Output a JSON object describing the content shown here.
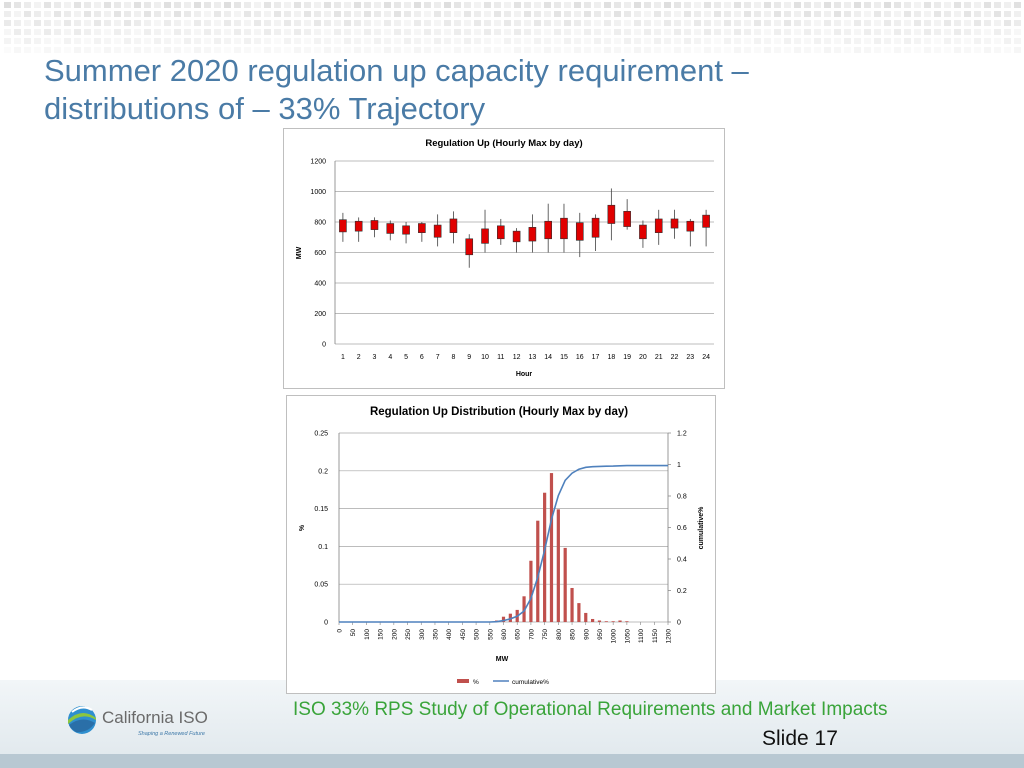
{
  "slide": {
    "title_line1": "Summer 2020 regulation up capacity requirement –",
    "title_line2": "distributions of – 33% Trajectory",
    "footer_text": "ISO 33% RPS Study of Operational Requirements and Market Impacts",
    "slide_number": "Slide 17",
    "logo": {
      "name": "California ISO",
      "tagline": "Shaping a Renewed Future"
    },
    "colors": {
      "title": "#4a7ba6",
      "footer_text": "#3aa43a",
      "bar_red": "#e00000",
      "dist_bar": "#c0504d",
      "cumulative_line": "#4f81bd"
    }
  },
  "chart_data": [
    {
      "type": "candlestick",
      "title": "Regulation Up (Hourly Max by day)",
      "xlabel": "Hour",
      "ylabel": "MW",
      "ylim": [
        0,
        1200
      ],
      "yticks": [
        0,
        200,
        400,
        600,
        800,
        1000,
        1200
      ],
      "grid": true,
      "categories": [
        "1",
        "2",
        "3",
        "4",
        "5",
        "6",
        "7",
        "8",
        "9",
        "10",
        "11",
        "12",
        "13",
        "14",
        "15",
        "16",
        "17",
        "18",
        "19",
        "20",
        "21",
        "22",
        "23",
        "24"
      ],
      "boxes": [
        {
          "min": 670,
          "q1": 735,
          "q3": 815,
          "max": 860
        },
        {
          "min": 670,
          "q1": 740,
          "q3": 805,
          "max": 830
        },
        {
          "min": 700,
          "q1": 750,
          "q3": 810,
          "max": 830
        },
        {
          "min": 680,
          "q1": 725,
          "q3": 790,
          "max": 810
        },
        {
          "min": 660,
          "q1": 720,
          "q3": 775,
          "max": 800
        },
        {
          "min": 670,
          "q1": 730,
          "q3": 790,
          "max": 800
        },
        {
          "min": 640,
          "q1": 700,
          "q3": 780,
          "max": 850
        },
        {
          "min": 660,
          "q1": 730,
          "q3": 820,
          "max": 870
        },
        {
          "min": 500,
          "q1": 585,
          "q3": 690,
          "max": 720
        },
        {
          "min": 600,
          "q1": 660,
          "q3": 755,
          "max": 880
        },
        {
          "min": 650,
          "q1": 690,
          "q3": 775,
          "max": 820
        },
        {
          "min": 600,
          "q1": 670,
          "q3": 740,
          "max": 760
        },
        {
          "min": 600,
          "q1": 675,
          "q3": 765,
          "max": 850
        },
        {
          "min": 600,
          "q1": 690,
          "q3": 805,
          "max": 920
        },
        {
          "min": 600,
          "q1": 690,
          "q3": 825,
          "max": 920
        },
        {
          "min": 570,
          "q1": 680,
          "q3": 795,
          "max": 860
        },
        {
          "min": 610,
          "q1": 700,
          "q3": 825,
          "max": 850
        },
        {
          "min": 680,
          "q1": 790,
          "q3": 910,
          "max": 1020
        },
        {
          "min": 750,
          "q1": 770,
          "q3": 870,
          "max": 950
        },
        {
          "min": 630,
          "q1": 690,
          "q3": 780,
          "max": 810
        },
        {
          "min": 650,
          "q1": 730,
          "q3": 820,
          "max": 880
        },
        {
          "min": 690,
          "q1": 760,
          "q3": 820,
          "max": 880
        },
        {
          "min": 640,
          "q1": 740,
          "q3": 805,
          "max": 820
        },
        {
          "min": 640,
          "q1": 765,
          "q3": 845,
          "max": 880
        }
      ]
    },
    {
      "type": "bar+line",
      "title": "Regulation Up Distribution (Hourly Max by day)",
      "xlabel": "MW",
      "ylabel": "%",
      "y2label": "cumulative%",
      "ylim": [
        0,
        0.25
      ],
      "yticks": [
        "0",
        "0.05",
        "0.1",
        "0.15",
        "0.2",
        "0.25"
      ],
      "y2lim": [
        0,
        1.2
      ],
      "y2ticks": [
        "0",
        "0.2",
        "0.4",
        "0.6",
        "0.8",
        "1",
        "1.2"
      ],
      "x_tick_labels": [
        "0",
        "50",
        "100",
        "150",
        "200",
        "250",
        "300",
        "350",
        "400",
        "450",
        "500",
        "550",
        "600",
        "650",
        "700",
        "750",
        "800",
        "850",
        "900",
        "950",
        "1000",
        "1050",
        "1100",
        "1150",
        "1200"
      ],
      "legend": "bottom",
      "series": [
        {
          "name": "%",
          "type": "bar",
          "x": [
            575,
            600,
            625,
            650,
            675,
            700,
            725,
            750,
            775,
            800,
            825,
            850,
            875,
            900,
            925,
            950,
            975,
            1000,
            1025,
            1050
          ],
          "values": [
            0.002,
            0.007,
            0.011,
            0.016,
            0.034,
            0.081,
            0.134,
            0.171,
            0.197,
            0.149,
            0.098,
            0.045,
            0.025,
            0.012,
            0.004,
            0.002,
            0.001,
            0.001,
            0.002,
            0.001
          ]
        },
        {
          "name": "cumulative%",
          "type": "line",
          "x": [
            0,
            550,
            575,
            600,
            625,
            650,
            675,
            700,
            725,
            750,
            775,
            800,
            825,
            850,
            875,
            900,
            925,
            950,
            975,
            1000,
            1025,
            1050,
            1200
          ],
          "values": [
            0,
            0,
            0.002,
            0.009,
            0.02,
            0.036,
            0.07,
            0.15,
            0.285,
            0.456,
            0.653,
            0.802,
            0.9,
            0.945,
            0.97,
            0.982,
            0.986,
            0.988,
            0.989,
            0.99,
            0.992,
            0.993,
            0.993
          ]
        }
      ]
    }
  ]
}
